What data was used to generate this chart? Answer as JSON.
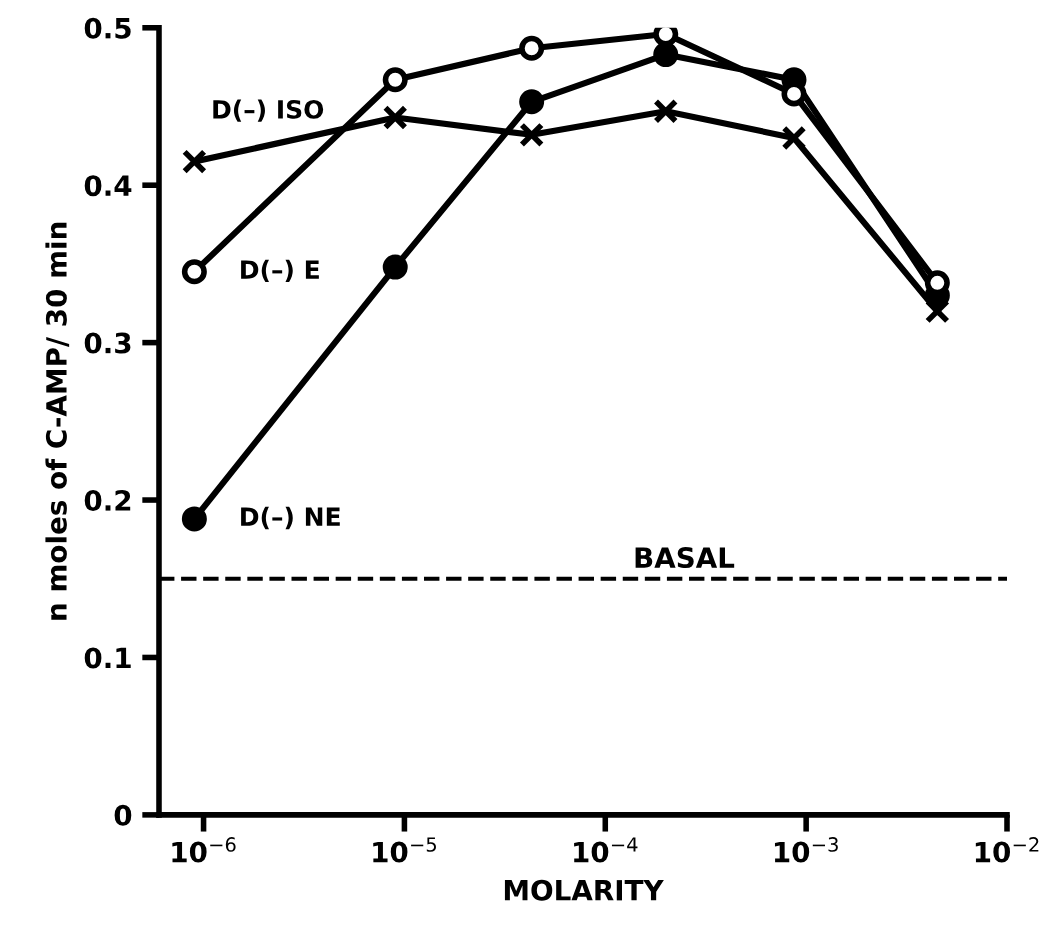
{
  "chart_data": {
    "type": "line",
    "xlabel": "MOLARITY",
    "ylabel": "n moles of C-AMP/ 30 min",
    "log": "x",
    "xlim": [
      6e-07,
      0.01
    ],
    "ylim": [
      0,
      0.5
    ],
    "xticks": [
      {
        "value": 1e-06,
        "label": "10$^{−6}$"
      },
      {
        "value": 1e-05,
        "label": "10$^{−5}$"
      },
      {
        "value": 0.0001,
        "label": "10$^{−4}$"
      },
      {
        "value": 0.001,
        "label": "10$^{−3}$"
      },
      {
        "value": 0.01,
        "label": "10$^{−2}$"
      }
    ],
    "yticks": [
      0,
      0.1,
      0.2,
      0.3,
      0.4,
      0.5
    ],
    "x": [
      9e-07,
      9e-06,
      4.3e-05,
      0.0002,
      0.00087,
      0.0045
    ],
    "grid": false,
    "legend": false,
    "line_style": "solid",
    "series": [
      {
        "name": "D(–) ISO",
        "color": "#000000",
        "marker": "cross",
        "values": [
          0.415,
          0.443,
          0.432,
          0.447,
          0.43,
          0.32
        ]
      },
      {
        "name": "D(–) E",
        "color": "#000000",
        "marker": "circle",
        "values": [
          0.345,
          0.467,
          0.487,
          0.496,
          0.458,
          0.338
        ]
      },
      {
        "name": "D(–) NE",
        "color": "#000000",
        "marker": "circle",
        "values": [
          0.188,
          0.348,
          0.453,
          0.483,
          0.467,
          0.33
        ]
      }
    ],
    "ref_lines": [
      {
        "axis": "y",
        "value": 0.15,
        "label": "BASAL",
        "color": "#000000",
        "line_style": "dashed"
      }
    ]
  }
}
